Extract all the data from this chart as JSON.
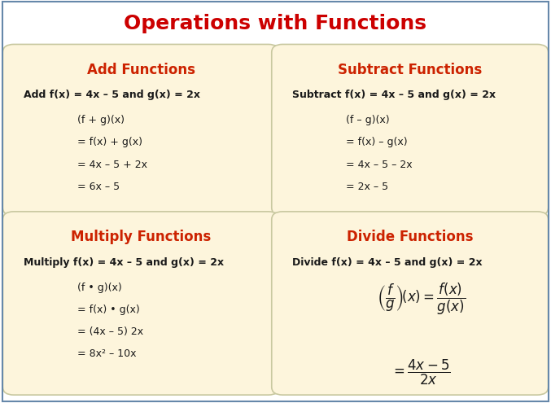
{
  "title": "Operations with Functions",
  "title_color": "#cc0000",
  "title_fontsize": 18,
  "bg_color": "#ffffff",
  "box_color": "#fdf5dc",
  "box_edge_color": "#c8c8a0",
  "header_color": "#cc2200",
  "text_color": "#1a1a1a",
  "outer_border_color": "#6688aa",
  "panels": [
    {
      "header": "Add Functions",
      "problem": "Add f(χ) = 4χ – 5 and g(χ) = 2χ",
      "problem_plain": "Add f(x) = 4x – 5 and g(x) = 2x",
      "lines": [
        "(f + g)(x)",
        "= f(x) + g(x)",
        "= 4x – 5 + 2x",
        "= 6x – 5"
      ],
      "is_divide": false
    },
    {
      "header": "Subtract Functions",
      "problem_plain": "Subtract f(x) = 4x – 5 and g(x) = 2x",
      "lines": [
        "(f – g)(x)",
        "= f(x) – g(x)",
        "= 4x – 5 – 2x",
        "= 2x – 5"
      ],
      "is_divide": false
    },
    {
      "header": "Multiply Functions",
      "problem_plain": "Multiply f(x) = 4x – 5 and g(x) = 2x",
      "lines": [
        "(f • g)(x)",
        "= f(x) • g(x)",
        "= (4x – 5) 2x",
        "= 8x² – 10x"
      ],
      "is_divide": false
    },
    {
      "header": "Divide Functions",
      "problem_plain": "Divide f(x) = 4x – 5 and g(x) = 2x",
      "lines": [],
      "is_divide": true
    }
  ]
}
